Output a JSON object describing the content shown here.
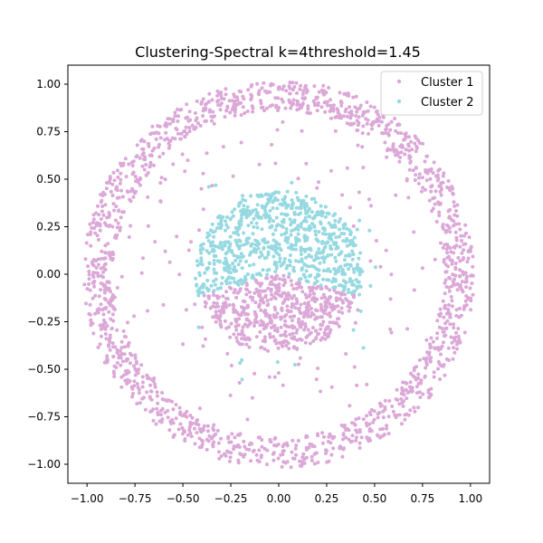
{
  "chart_data": {
    "type": "scatter",
    "title": "Clustering-Spectral k=4threshold=1.45",
    "xlabel": "",
    "ylabel": "",
    "xlim": [
      -1.1,
      1.1
    ],
    "ylim": [
      -1.1,
      1.1
    ],
    "xticks": [
      -1.0,
      -0.75,
      -0.5,
      -0.25,
      0.0,
      0.25,
      0.5,
      0.75,
      1.0
    ],
    "yticks": [
      -1.0,
      -0.75,
      -0.5,
      -0.25,
      0.0,
      0.25,
      0.5,
      0.75,
      1.0
    ],
    "xtick_labels": [
      "−1.00",
      "−0.75",
      "−0.50",
      "−0.25",
      "0.00",
      "0.25",
      "0.50",
      "0.75",
      "1.00"
    ],
    "ytick_labels": [
      "−1.00",
      "−0.75",
      "−0.50",
      "−0.25",
      "0.00",
      "0.25",
      "0.50",
      "0.75",
      "1.00"
    ],
    "grid": false,
    "legend_position": "top-right",
    "series": [
      {
        "name": "Cluster 1",
        "color": "#dba8d8",
        "components": [
          {
            "shape": "ring",
            "center": [
              0.0,
              0.0
            ],
            "r_min": 0.86,
            "r_max": 1.02,
            "points": 1500
          },
          {
            "shape": "half-disk",
            "center": [
              0.0,
              0.0
            ],
            "radius": 0.42,
            "angle_from_deg": 195,
            "angle_to_deg": 345,
            "points": 520
          },
          {
            "shape": "sparse-annulus",
            "center": [
              0.0,
              0.0
            ],
            "r_min": 0.45,
            "r_max": 0.85,
            "points": 110
          }
        ]
      },
      {
        "name": "Cluster 2",
        "color": "#97d9e1",
        "components": [
          {
            "shape": "half-disk",
            "center": [
              0.0,
              0.0
            ],
            "radius": 0.44,
            "angle_from_deg": -15,
            "angle_to_deg": 195,
            "points": 760
          },
          {
            "shape": "sparse-annulus",
            "center": [
              0.0,
              0.0
            ],
            "r_min": 0.45,
            "r_max": 0.6,
            "points": 18
          }
        ]
      }
    ]
  }
}
